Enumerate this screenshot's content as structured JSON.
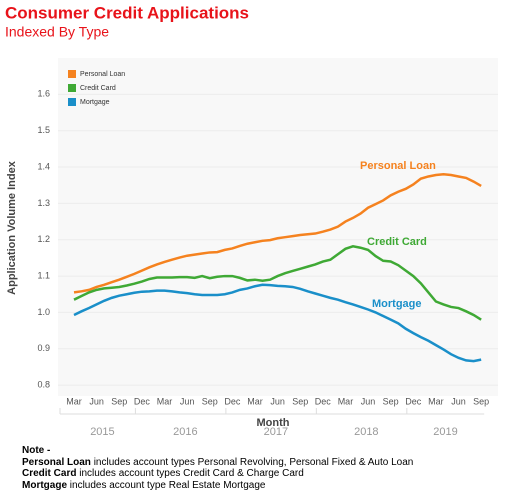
{
  "chart_data": {
    "type": "line",
    "title": "Consumer Credit Applications",
    "subtitle": "Indexed By Type",
    "x_label": "Month",
    "y_label": "Application Volume Index",
    "categories": [
      "Mar",
      null,
      null,
      "Jun",
      null,
      null,
      "Sep",
      null,
      null,
      "Dec",
      null,
      null,
      "Mar",
      null,
      null,
      "Jun",
      null,
      null,
      "Sep",
      null,
      null,
      "Dec",
      null,
      null,
      "Mar",
      null,
      null,
      "Jun",
      null,
      null,
      "Sep",
      null,
      null,
      "Dec",
      null,
      null,
      "Mar",
      null,
      null,
      "Jun",
      null,
      null,
      "Sep",
      null,
      null,
      "Dec",
      null,
      null,
      "Mar",
      null,
      null,
      "Jun",
      null,
      null,
      "Sep"
    ],
    "years": [
      "2015",
      "2016",
      "2017",
      "2018",
      "2019"
    ],
    "series": [
      {
        "name": "Personal Loan",
        "color": "#f5821f",
        "values": [
          1.055,
          1.058,
          1.062,
          1.07,
          1.076,
          1.083,
          1.09,
          1.098,
          1.106,
          1.115,
          1.124,
          1.132,
          1.139,
          1.145,
          1.151,
          1.156,
          1.159,
          1.162,
          1.165,
          1.166,
          1.172,
          1.176,
          1.183,
          1.189,
          1.193,
          1.197,
          1.199,
          1.204,
          1.207,
          1.21,
          1.213,
          1.215,
          1.217,
          1.222,
          1.228,
          1.236,
          1.25,
          1.26,
          1.272,
          1.288,
          1.298,
          1.308,
          1.322,
          1.332,
          1.34,
          1.352,
          1.368,
          1.374,
          1.378,
          1.38,
          1.378,
          1.374,
          1.37,
          1.36,
          1.348
        ]
      },
      {
        "name": "Credit Card",
        "color": "#3fa935",
        "values": [
          1.035,
          1.045,
          1.055,
          1.062,
          1.066,
          1.068,
          1.07,
          1.074,
          1.079,
          1.085,
          1.092,
          1.096,
          1.096,
          1.096,
          1.097,
          1.097,
          1.095,
          1.1,
          1.094,
          1.098,
          1.1,
          1.1,
          1.095,
          1.088,
          1.09,
          1.087,
          1.09,
          1.1,
          1.108,
          1.114,
          1.12,
          1.126,
          1.132,
          1.14,
          1.145,
          1.16,
          1.175,
          1.182,
          1.178,
          1.172,
          1.155,
          1.142,
          1.14,
          1.13,
          1.115,
          1.1,
          1.08,
          1.055,
          1.03,
          1.022,
          1.015,
          1.012,
          1.003,
          0.993,
          0.98
        ]
      },
      {
        "name": "Mortgage",
        "color": "#1a8fc9",
        "values": [
          0.993,
          1.003,
          1.012,
          1.022,
          1.032,
          1.04,
          1.046,
          1.05,
          1.054,
          1.057,
          1.058,
          1.06,
          1.06,
          1.058,
          1.055,
          1.053,
          1.05,
          1.048,
          1.048,
          1.048,
          1.05,
          1.055,
          1.062,
          1.066,
          1.072,
          1.076,
          1.075,
          1.073,
          1.072,
          1.07,
          1.065,
          1.058,
          1.052,
          1.046,
          1.04,
          1.035,
          1.028,
          1.022,
          1.015,
          1.008,
          1.0,
          0.99,
          0.98,
          0.97,
          0.955,
          0.943,
          0.932,
          0.922,
          0.91,
          0.898,
          0.885,
          0.875,
          0.868,
          0.866,
          0.87
        ]
      }
    ],
    "ylim": [
      0.77,
      1.7
    ],
    "yticks": [
      0.8,
      0.9,
      {
        "value": 1.0,
        "label": "1.0"
      },
      1.1,
      1.2,
      1.3,
      1.4,
      1.5,
      1.6
    ],
    "grid": true,
    "legend": "top-left"
  },
  "notes": {
    "heading": "Note -",
    "lines": [
      {
        "term": "Personal Loan",
        "text": "includes account types Personal Revolving, Personal Fixed & Auto Loan"
      },
      {
        "term": "Credit Card",
        "text": "includes account types Credit Card & Charge Card"
      },
      {
        "term": "Mortgage",
        "text": "includes account type Real Estate Mortgage"
      }
    ]
  }
}
